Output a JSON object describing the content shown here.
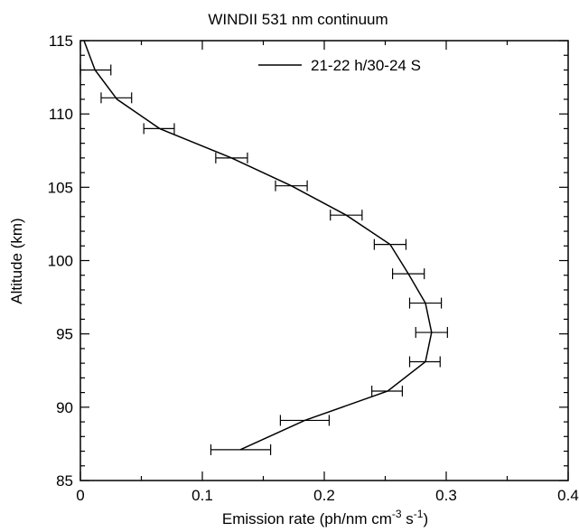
{
  "chart_data": {
    "type": "line",
    "title": "WINDII 531 nm continuum",
    "xlabel": "Emission rate (ph/nm cm",
    "xlabel_sup1": "-3",
    "xlabel_mid": " s",
    "xlabel_sup2": "-1",
    "xlabel_end": ")",
    "ylabel": "Altitude (km)",
    "xlim": [
      0,
      0.4
    ],
    "ylim": [
      85,
      115
    ],
    "xticks": [
      0,
      0.1,
      0.2,
      0.3,
      0.4
    ],
    "xtick_labels": [
      "0",
      "0.1",
      "0.2",
      "0.3",
      "0.4"
    ],
    "yticks": [
      85,
      90,
      95,
      100,
      105,
      110,
      115
    ],
    "ytick_labels": [
      "85",
      "90",
      "95",
      "100",
      "105",
      "110",
      "115"
    ],
    "legend_position": "top-right",
    "grid": false,
    "series": [
      {
        "name": "21-22 h/30-24 S",
        "color": "#000000",
        "points": [
          {
            "y": 115.0,
            "x": 0.003
          },
          {
            "y": 113.0,
            "x": 0.012
          },
          {
            "y": 111.0,
            "x": 0.03
          },
          {
            "y": 109.0,
            "x": 0.065
          },
          {
            "y": 107.0,
            "x": 0.124
          },
          {
            "y": 105.1,
            "x": 0.173
          },
          {
            "y": 103.1,
            "x": 0.218
          },
          {
            "y": 101.1,
            "x": 0.254
          },
          {
            "y": 99.1,
            "x": 0.269
          },
          {
            "y": 97.1,
            "x": 0.283
          },
          {
            "y": 95.1,
            "x": 0.288
          },
          {
            "y": 93.1,
            "x": 0.283
          },
          {
            "y": 91.1,
            "x": 0.252
          },
          {
            "y": 89.1,
            "x": 0.184
          },
          {
            "y": 87.1,
            "x": 0.131
          }
        ],
        "error_bars": [
          {
            "y": 113.0,
            "xmin": 0.0,
            "xmax": 0.025
          },
          {
            "y": 111.1,
            "xmin": 0.017,
            "xmax": 0.042
          },
          {
            "y": 109.0,
            "xmin": 0.052,
            "xmax": 0.077
          },
          {
            "y": 107.0,
            "xmin": 0.111,
            "xmax": 0.137
          },
          {
            "y": 105.1,
            "xmin": 0.16,
            "xmax": 0.186
          },
          {
            "y": 103.1,
            "xmin": 0.205,
            "xmax": 0.231
          },
          {
            "y": 101.1,
            "xmin": 0.241,
            "xmax": 0.267
          },
          {
            "y": 99.1,
            "xmin": 0.256,
            "xmax": 0.282
          },
          {
            "y": 97.1,
            "xmin": 0.27,
            "xmax": 0.296
          },
          {
            "y": 95.1,
            "xmin": 0.275,
            "xmax": 0.301
          },
          {
            "y": 93.1,
            "xmin": 0.27,
            "xmax": 0.295
          },
          {
            "y": 91.1,
            "xmin": 0.239,
            "xmax": 0.264
          },
          {
            "y": 89.1,
            "xmin": 0.164,
            "xmax": 0.204
          },
          {
            "y": 87.1,
            "xmin": 0.107,
            "xmax": 0.156
          }
        ]
      }
    ]
  }
}
